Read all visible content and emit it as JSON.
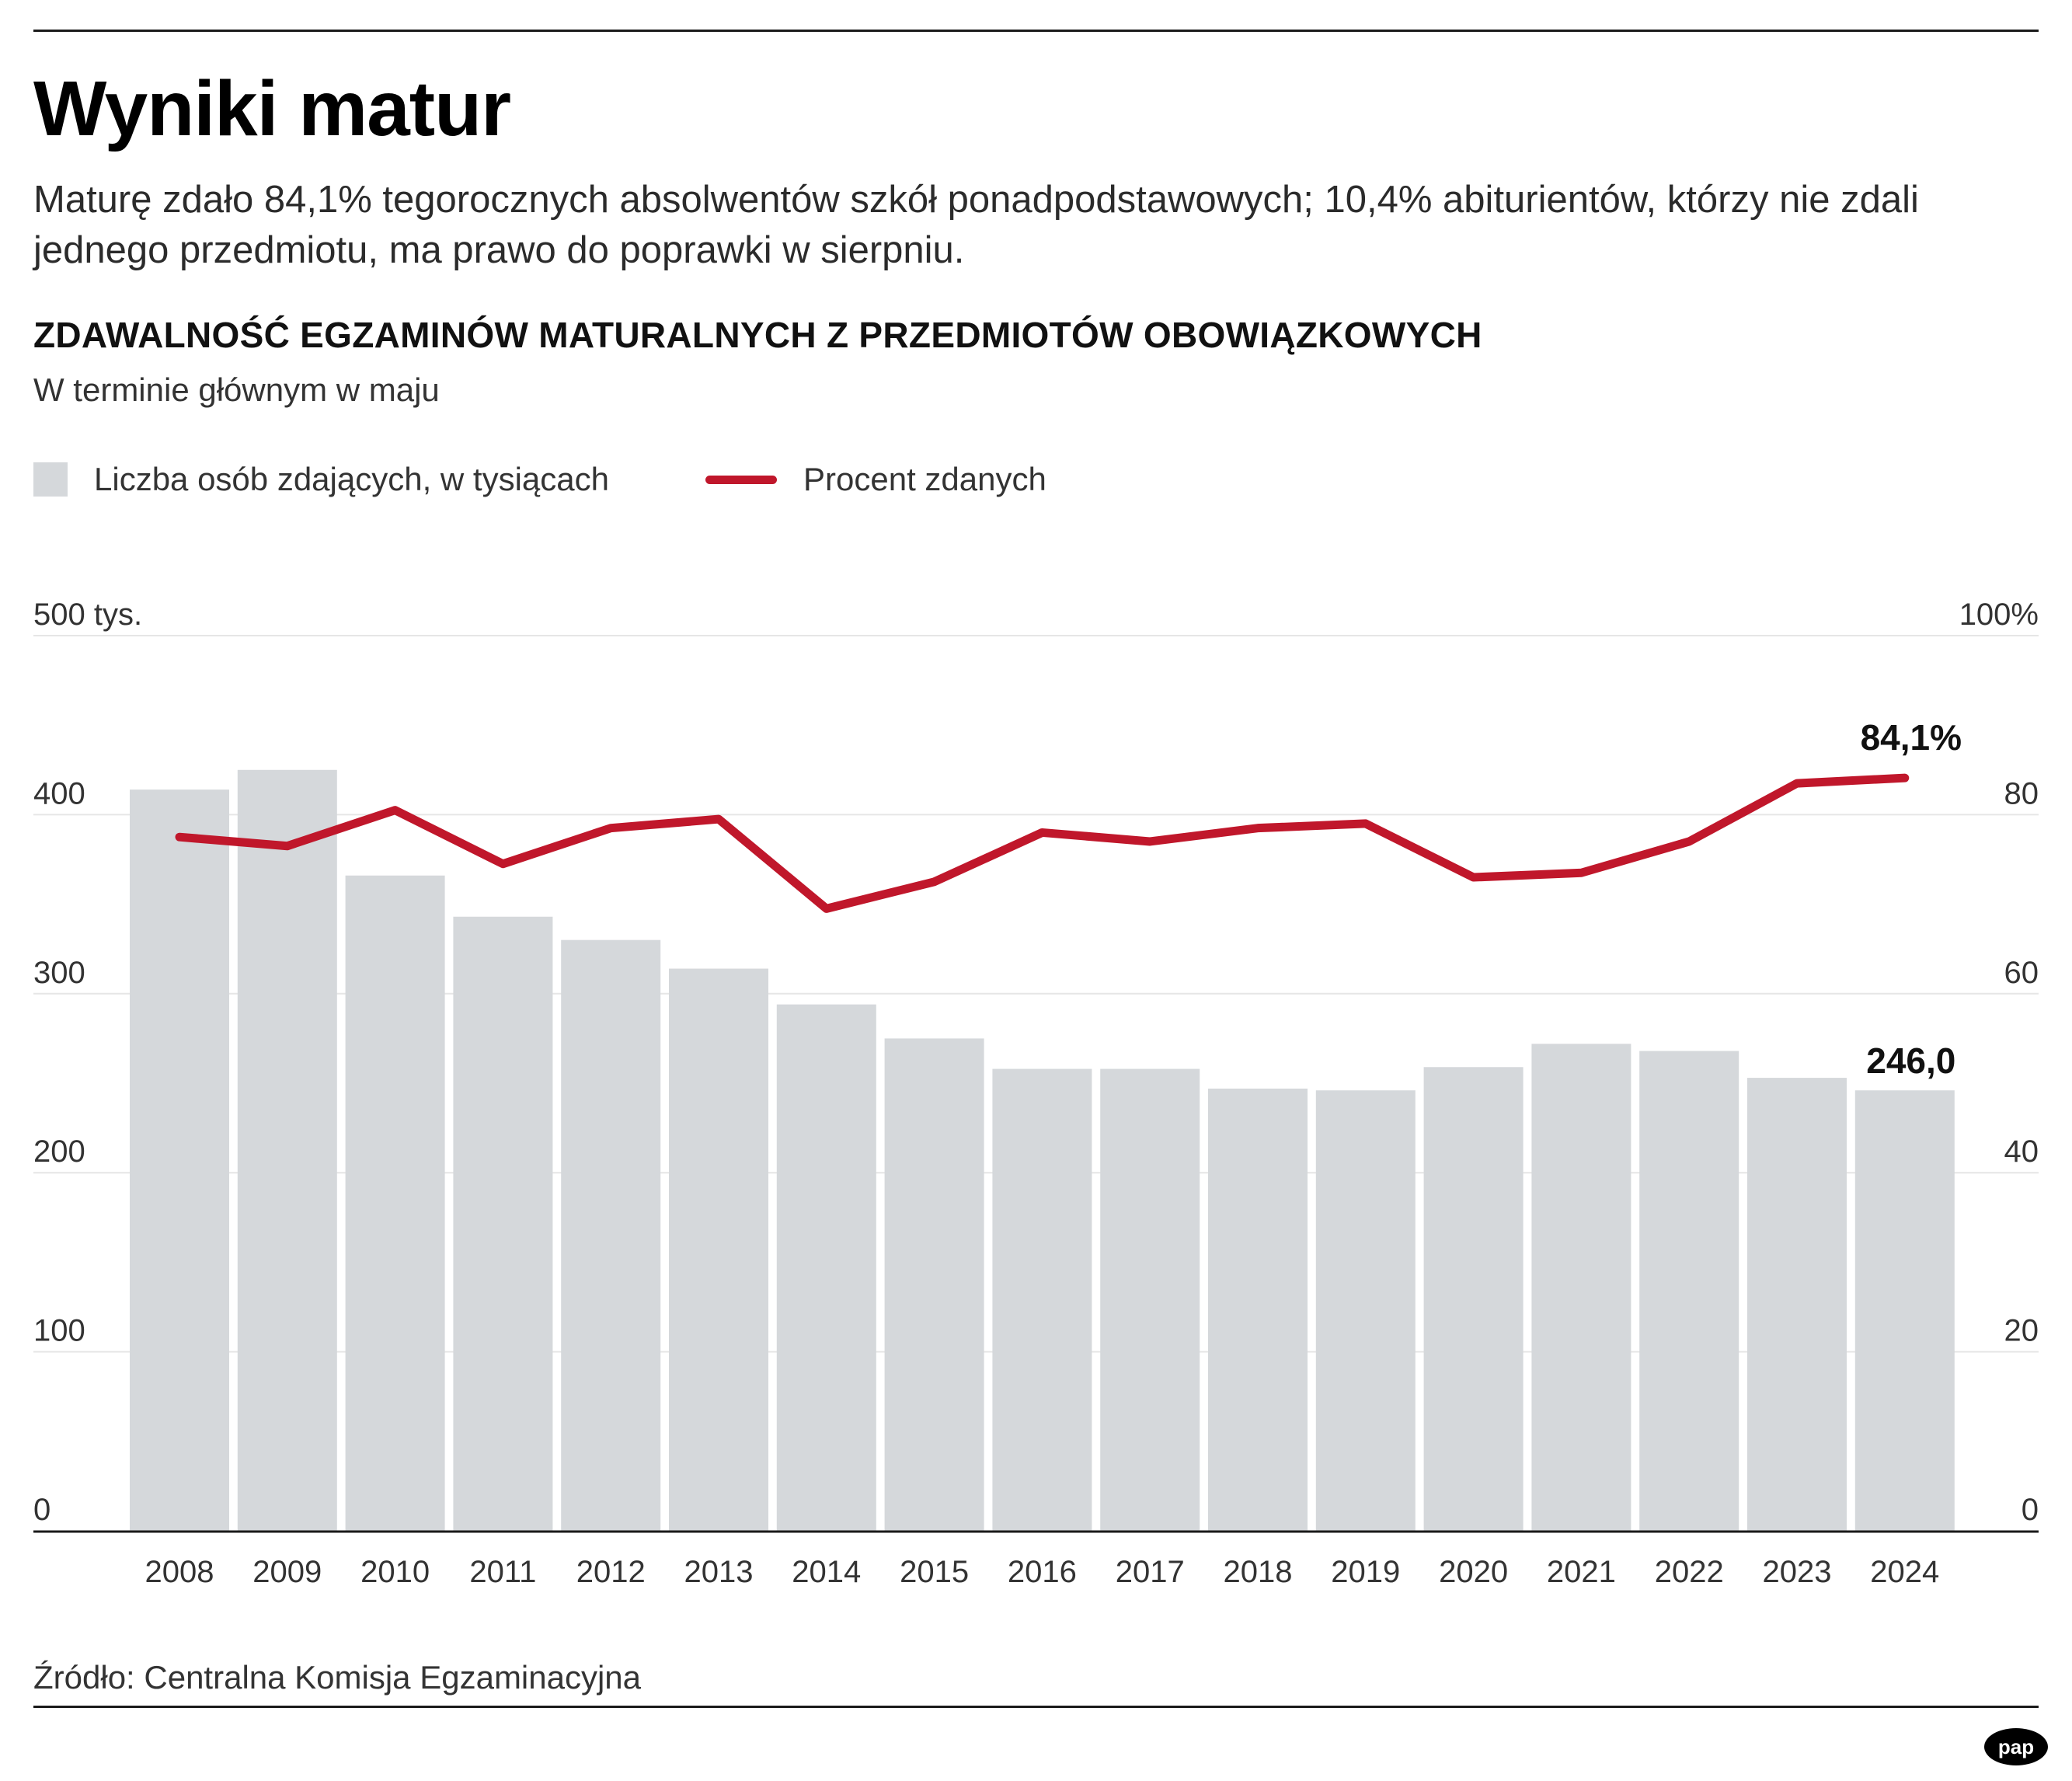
{
  "header": {
    "title": "Wyniki matur",
    "lead": "Maturę zdało 84,1% tegorocznych absolwentów szkół ponadpodstawowych; 10,4% abiturientów, którzy nie zdali jednego przedmiotu, ma prawo do poprawki w sierpniu."
  },
  "chart_data": {
    "type": "bar",
    "title": "ZDAWALNOŚĆ EGZAMINÓW MATURALNYCH Z PRZEDMIOTÓW OBOWIĄZKOWYCH",
    "subtitle": "W terminie głównym w maju",
    "categories": [
      "2008",
      "2009",
      "2010",
      "2011",
      "2012",
      "2013",
      "2014",
      "2015",
      "2016",
      "2017",
      "2018",
      "2019",
      "2020",
      "2021",
      "2022",
      "2023",
      "2024"
    ],
    "series": [
      {
        "name": "Liczba osób zdających, w tysiącach",
        "type": "bar",
        "axis": "left",
        "color": "#d5d8db",
        "values": [
          414,
          425,
          366,
          343,
          330,
          314,
          294,
          275,
          258,
          258,
          247,
          246,
          259,
          272,
          268,
          253,
          246.0
        ]
      },
      {
        "name": "Procent zdanych",
        "type": "line",
        "axis": "right",
        "color": "#c0172b",
        "values": [
          77.5,
          76.5,
          80.5,
          74.5,
          78.5,
          79.5,
          69.5,
          72.5,
          78,
          77,
          78.5,
          79,
          73,
          73.5,
          77,
          83.5,
          84.1
        ]
      }
    ],
    "y_left": {
      "min": 0,
      "max": 500,
      "ticks": [
        "0",
        "100",
        "200",
        "300",
        "400",
        "500 tys."
      ]
    },
    "y_right": {
      "min": 0,
      "max": 100,
      "ticks": [
        "0",
        "20",
        "40",
        "60",
        "80",
        "100%"
      ]
    },
    "annotations": [
      {
        "series": 0,
        "index": 16,
        "text": "246,0"
      },
      {
        "series": 1,
        "index": 16,
        "text": "84,1%"
      }
    ],
    "grid": true,
    "legend_position": "top-left"
  },
  "footer": {
    "source": "Źródło: Centralna Komisja Egzaminacyjna",
    "logo_text": "pap"
  }
}
